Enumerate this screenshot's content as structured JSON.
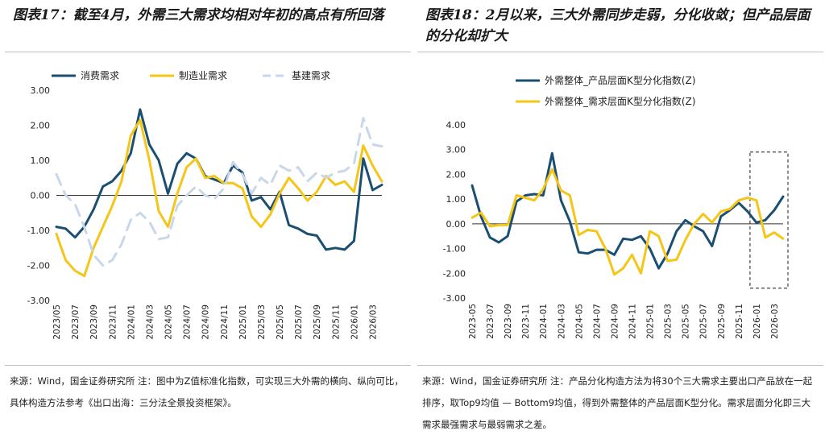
{
  "left": {
    "title": "图表17：截至4月，外需三大需求均相对年初的高点有所回落",
    "source": "来源：Wind，国金证券研究所 注：图中为Z值标准化指数，可实现三大外需的横向、纵向可比，具体构造方法参考《出口出海：三分法全景投资框架》。"
  },
  "right": {
    "title": "图表18：2月以来，三大外需同步走弱，分化收敛；但产品层面的分化却扩大",
    "source": "来源：Wind，国金证券研究所 注：产品分化构造方法为将30个三大需求主要出口产品放在一起排序，取Top9均值 — Bottom9均值，得到外需整体的产品层面K型分化。需求层面分化即三大需求最强需求与最弱需求之差。"
  },
  "chart_data": [
    {
      "type": "line",
      "title": "",
      "ylim": [
        -3.0,
        3.0
      ],
      "yticks": [
        "3.00",
        "2.00",
        "1.00",
        "0.00",
        "-1.00",
        "-2.00",
        "-3.00"
      ],
      "x_tick_labels": [
        "2023/05",
        "2023/07",
        "2023/09",
        "2023/11",
        "2024/01",
        "2024/03",
        "2024/05",
        "2024/07",
        "2024/09",
        "2024/11",
        "2025/01",
        "2025/03",
        "2025/05",
        "2025/07",
        "2025/09",
        "2025/11",
        "2026/01",
        "2026/03"
      ],
      "legend_position": "top",
      "series": [
        {
          "name": "消费需求",
          "color": "#1b4f72",
          "style": "solid",
          "values": [
            -0.9,
            -0.95,
            -1.2,
            -0.9,
            -0.4,
            0.25,
            0.4,
            0.7,
            1.2,
            2.45,
            1.45,
            1.0,
            0.05,
            0.9,
            1.2,
            1.05,
            0.55,
            0.45,
            0.35,
            0.85,
            0.65,
            -0.15,
            -0.05,
            -0.4,
            0.1,
            -0.85,
            -0.95,
            -1.1,
            -1.15,
            -1.55,
            -1.5,
            -1.55,
            -1.3,
            1.05,
            0.15,
            0.3
          ]
        },
        {
          "name": "制造业需求",
          "color": "#f5c518",
          "style": "solid",
          "values": [
            -1.1,
            -1.85,
            -2.15,
            -2.3,
            -1.5,
            -0.9,
            -0.3,
            0.4,
            1.7,
            2.15,
            1.0,
            -0.45,
            -0.9,
            0.05,
            0.8,
            1.05,
            0.5,
            0.55,
            0.35,
            0.35,
            0.2,
            -0.6,
            -0.9,
            -0.55,
            0.05,
            0.5,
            0.2,
            -0.15,
            0.1,
            0.55,
            0.3,
            0.4,
            0.1,
            1.42,
            0.85,
            0.4
          ]
        },
        {
          "name": "基建需求",
          "color": "#c9d7e8",
          "style": "dashed",
          "values": [
            0.6,
            0.0,
            -0.25,
            -0.9,
            -1.7,
            -2.0,
            -1.85,
            -1.4,
            -0.7,
            -0.5,
            -0.75,
            -1.25,
            -1.2,
            -0.3,
            0.0,
            0.25,
            0.0,
            -0.1,
            0.2,
            0.95,
            0.6,
            0.05,
            0.5,
            0.3,
            0.85,
            0.7,
            0.8,
            0.4,
            0.65,
            0.5,
            0.65,
            0.7,
            0.9,
            2.2,
            1.45,
            1.4
          ]
        }
      ]
    },
    {
      "type": "line",
      "title": "",
      "ylim": [
        -3.0,
        4.0
      ],
      "yticks": [
        "4.00",
        "3.00",
        "2.00",
        "1.00",
        "0.00",
        "-1.00",
        "-2.00",
        "-3.00"
      ],
      "x_tick_labels": [
        "2023-05",
        "2023-07",
        "2023-09",
        "2023-11",
        "2024-01",
        "2024-03",
        "2024-05",
        "2024-07",
        "2024-09",
        "2024-11",
        "2025-01",
        "2025-03",
        "2025-05",
        "2025-07",
        "2025-09",
        "2025-11",
        "2026-01",
        "2026-03"
      ],
      "legend_position": "top",
      "series": [
        {
          "name": "外需整体_产品层面K型分化指数(Z)",
          "color": "#1b4f72",
          "style": "solid",
          "values": [
            1.55,
            0.3,
            -0.55,
            -0.75,
            -0.5,
            0.9,
            1.15,
            1.2,
            1.15,
            2.85,
            0.95,
            0.1,
            -1.15,
            -1.2,
            -1.05,
            -1.05,
            -1.25,
            -0.6,
            -0.65,
            -0.5,
            -1.0,
            -1.8,
            -1.2,
            -0.3,
            0.15,
            -0.1,
            -0.3,
            -0.9,
            0.3,
            0.55,
            0.85,
            0.5,
            0.05,
            0.15,
            0.55,
            1.1
          ]
        },
        {
          "name": "外需整体_需求层面K型分化指数(Z)",
          "color": "#f5c518",
          "style": "solid",
          "values": [
            0.25,
            0.45,
            -0.1,
            -0.05,
            -0.05,
            1.15,
            1.05,
            0.95,
            1.4,
            2.2,
            1.35,
            1.15,
            -0.45,
            -0.25,
            -0.3,
            -1.0,
            -2.05,
            -1.8,
            -1.25,
            -2.0,
            -0.3,
            -0.5,
            -1.5,
            -1.45,
            -0.65,
            0.0,
            0.4,
            0.05,
            0.5,
            0.6,
            0.95,
            1.05,
            0.95,
            -0.55,
            -0.35,
            -0.6
          ]
        }
      ],
      "highlight_box": {
        "from_index": 32,
        "to_index": 35,
        "y_range": [
          -2.6,
          2.9
        ]
      }
    }
  ]
}
